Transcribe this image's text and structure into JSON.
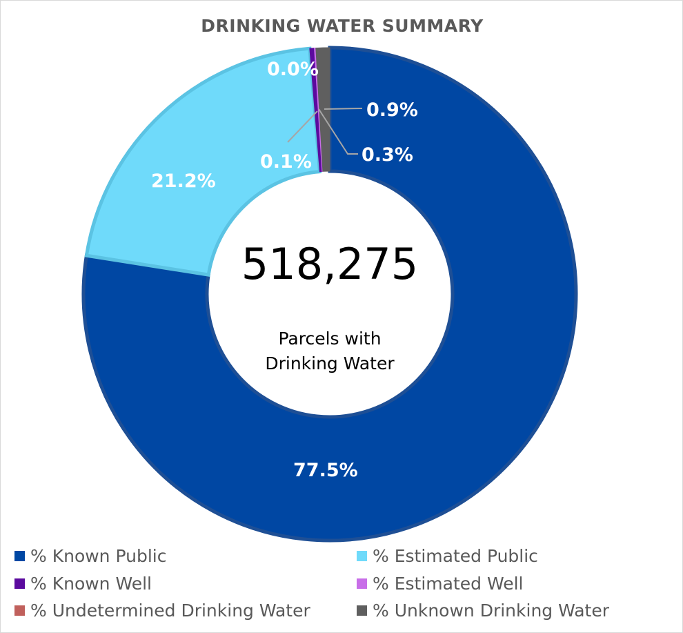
{
  "chart_data": {
    "type": "pie",
    "subtype": "donut",
    "title": "DRINKING WATER SUMMARY",
    "center_value": "518,275",
    "center_caption": [
      "Parcels with",
      "Drinking Water"
    ],
    "legend_position": "bottom",
    "series": [
      {
        "name": "% Known Public",
        "value": 77.5,
        "label": "77.5%",
        "color": "#0047A3"
      },
      {
        "name": "% Estimated Public",
        "value": 21.2,
        "label": "21.2%",
        "color": "#6FDAFA"
      },
      {
        "name": "% Known Well",
        "value": 0.3,
        "label": "0.3%",
        "color": "#5B0A9E"
      },
      {
        "name": "% Estimated Well",
        "value": 0.1,
        "label": "0.1%",
        "color": "#C86EE8"
      },
      {
        "name": "% Undetermined Drinking Water",
        "value": 0.0,
        "label": "0.0%",
        "color": "#C0605C"
      },
      {
        "name": "% Unknown Drinking Water",
        "value": 0.9,
        "label": "0.9%",
        "color": "#5F5F5F"
      }
    ]
  }
}
